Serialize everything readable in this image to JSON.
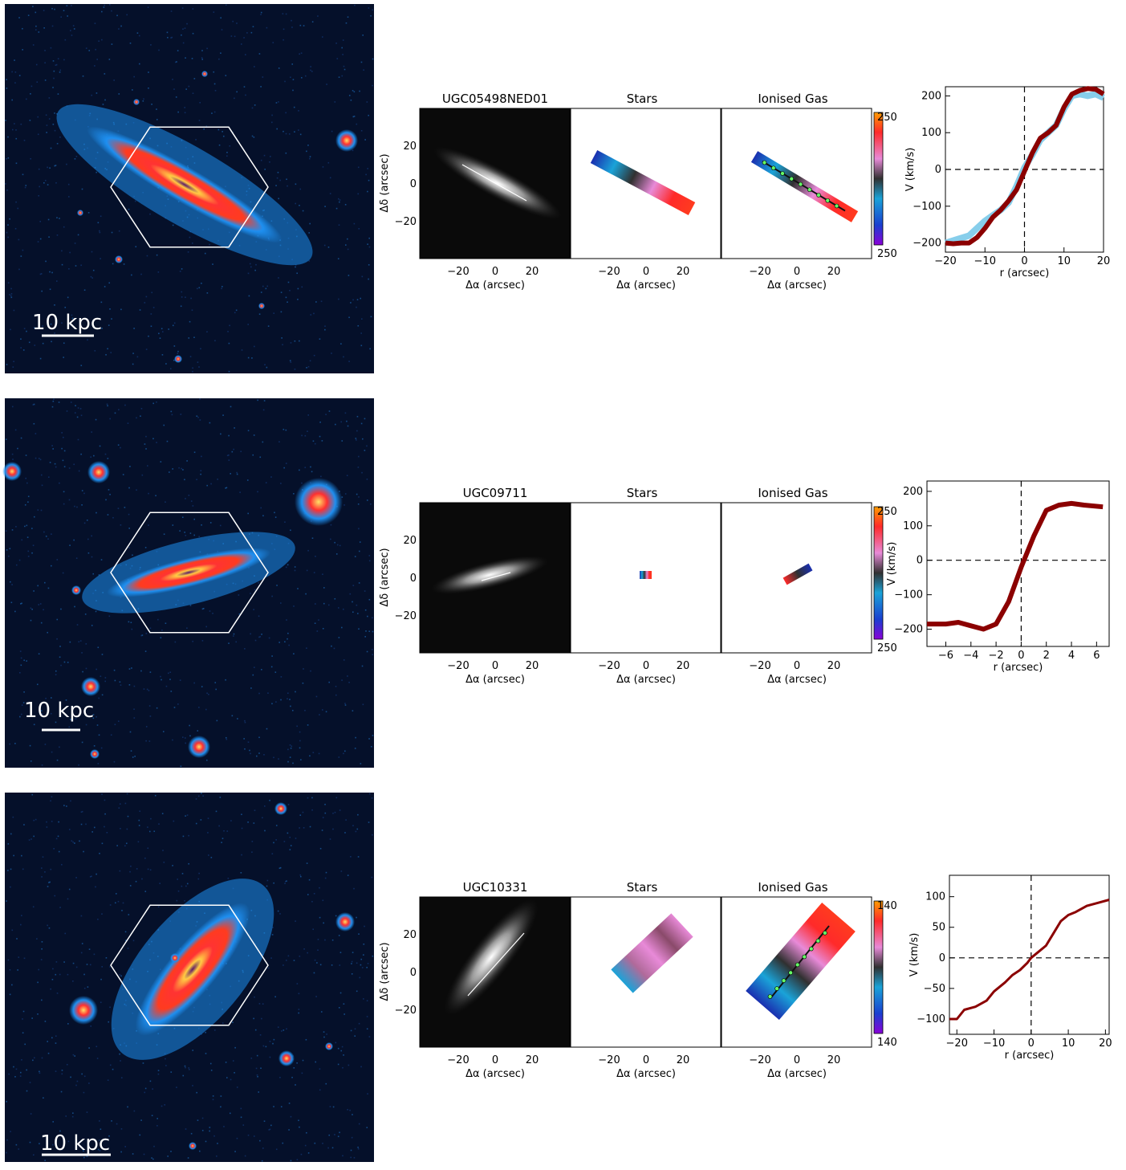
{
  "figure": {
    "panel_titles": {
      "stars": "Stars",
      "gas": "Ionised Gas"
    },
    "map_axes": {
      "xlabel": "Δα  (arcsec)",
      "ylabel": "Δδ  (arcsec)",
      "x_ticks": [
        "−20",
        "0",
        "20"
      ],
      "y_ticks": [
        "20",
        "0",
        "−20"
      ]
    },
    "rc_xlabel": "r (arcsec)",
    "rc_ylabel": "V (km/s)",
    "scale_bar_label": "10  kpc",
    "colors": {
      "stars_curve": "#87CEEB",
      "gas_curve": "#8B0000",
      "background": "#05102a"
    }
  },
  "rows": [
    {
      "galaxy_name": "UGC05498NED01",
      "cbar_top": "250",
      "cbar_bottom": "250",
      "rc_x_ticks": [
        "−20",
        "−10",
        "0",
        "10",
        "20"
      ],
      "rc_y_ticks": [
        "200",
        "100",
        "0",
        "−100",
        "−200"
      ]
    },
    {
      "galaxy_name": "UGC09711",
      "cbar_top": "250",
      "cbar_bottom": "250",
      "rc_x_ticks": [
        "−6",
        "−4",
        "−2",
        "0",
        "2",
        "4",
        "6"
      ],
      "rc_y_ticks": [
        "200",
        "100",
        "0",
        "−100",
        "−200"
      ]
    },
    {
      "galaxy_name": "UGC10331",
      "cbar_top": "140",
      "cbar_bottom": "140",
      "rc_x_ticks": [
        "−20",
        "−10",
        "0",
        "10",
        "20"
      ],
      "rc_y_ticks": [
        "100",
        "50",
        "0",
        "−50",
        "−100"
      ]
    }
  ],
  "chart_data": [
    {
      "type": "line",
      "galaxy": "UGC05498NED01",
      "xlabel": "r (arcsec)",
      "ylabel": "V (km/s)",
      "xlim": [
        -20,
        20
      ],
      "ylim": [
        -225,
        225
      ],
      "series": [
        {
          "x": [
            -20,
            -17,
            -14,
            -12,
            -10,
            -8,
            -6,
            -4,
            -2,
            0,
            2,
            4,
            6,
            8,
            10,
            12,
            14,
            16,
            18,
            20
          ],
          "values": [
            -200,
            -190,
            -180,
            -160,
            -140,
            -125,
            -110,
            -90,
            -45,
            5,
            40,
            80,
            100,
            120,
            165,
            200,
            205,
            200,
            205,
            195
          ]
        },
        {
          "x": [
            -20,
            -18,
            -16,
            -14,
            -12,
            -10,
            -8,
            -6,
            -4,
            -2,
            0,
            2,
            4,
            6,
            8,
            10,
            12,
            14,
            16,
            18,
            20
          ],
          "values": [
            -200,
            -202,
            -200,
            -200,
            -185,
            -160,
            -130,
            -110,
            -85,
            -55,
            -5,
            45,
            85,
            100,
            120,
            170,
            205,
            215,
            220,
            218,
            205
          ]
        }
      ]
    },
    {
      "type": "line",
      "galaxy": "UGC09711",
      "xlabel": "r (arcsec)",
      "ylabel": "V (km/s)",
      "xlim": [
        -7.5,
        7
      ],
      "ylim": [
        -250,
        230
      ],
      "series": [
        {
          "x": [
            -7.5,
            -6,
            -5,
            -4,
            -3,
            -2,
            -1,
            0,
            1,
            2,
            3,
            4,
            5,
            6.5
          ],
          "values": [
            -185,
            -185,
            -180,
            -190,
            -200,
            -185,
            -120,
            -20,
            70,
            145,
            160,
            165,
            160,
            155
          ]
        }
      ]
    },
    {
      "type": "line",
      "galaxy": "UGC10331",
      "xlabel": "r (arcsec)",
      "ylabel": "V (km/s)",
      "xlim": [
        -22,
        21
      ],
      "ylim": [
        -125,
        135
      ],
      "series": [
        {
          "x": [
            -22,
            -20,
            -18,
            -15,
            -12,
            -10,
            -7,
            -5,
            -3,
            -1,
            0,
            2,
            4,
            6,
            8,
            10,
            12,
            15,
            18,
            21
          ],
          "values": [
            -100,
            -100,
            -85,
            -80,
            -70,
            -55,
            -40,
            -28,
            -20,
            -8,
            0,
            10,
            20,
            40,
            60,
            70,
            75,
            85,
            90,
            95
          ]
        }
      ]
    }
  ]
}
